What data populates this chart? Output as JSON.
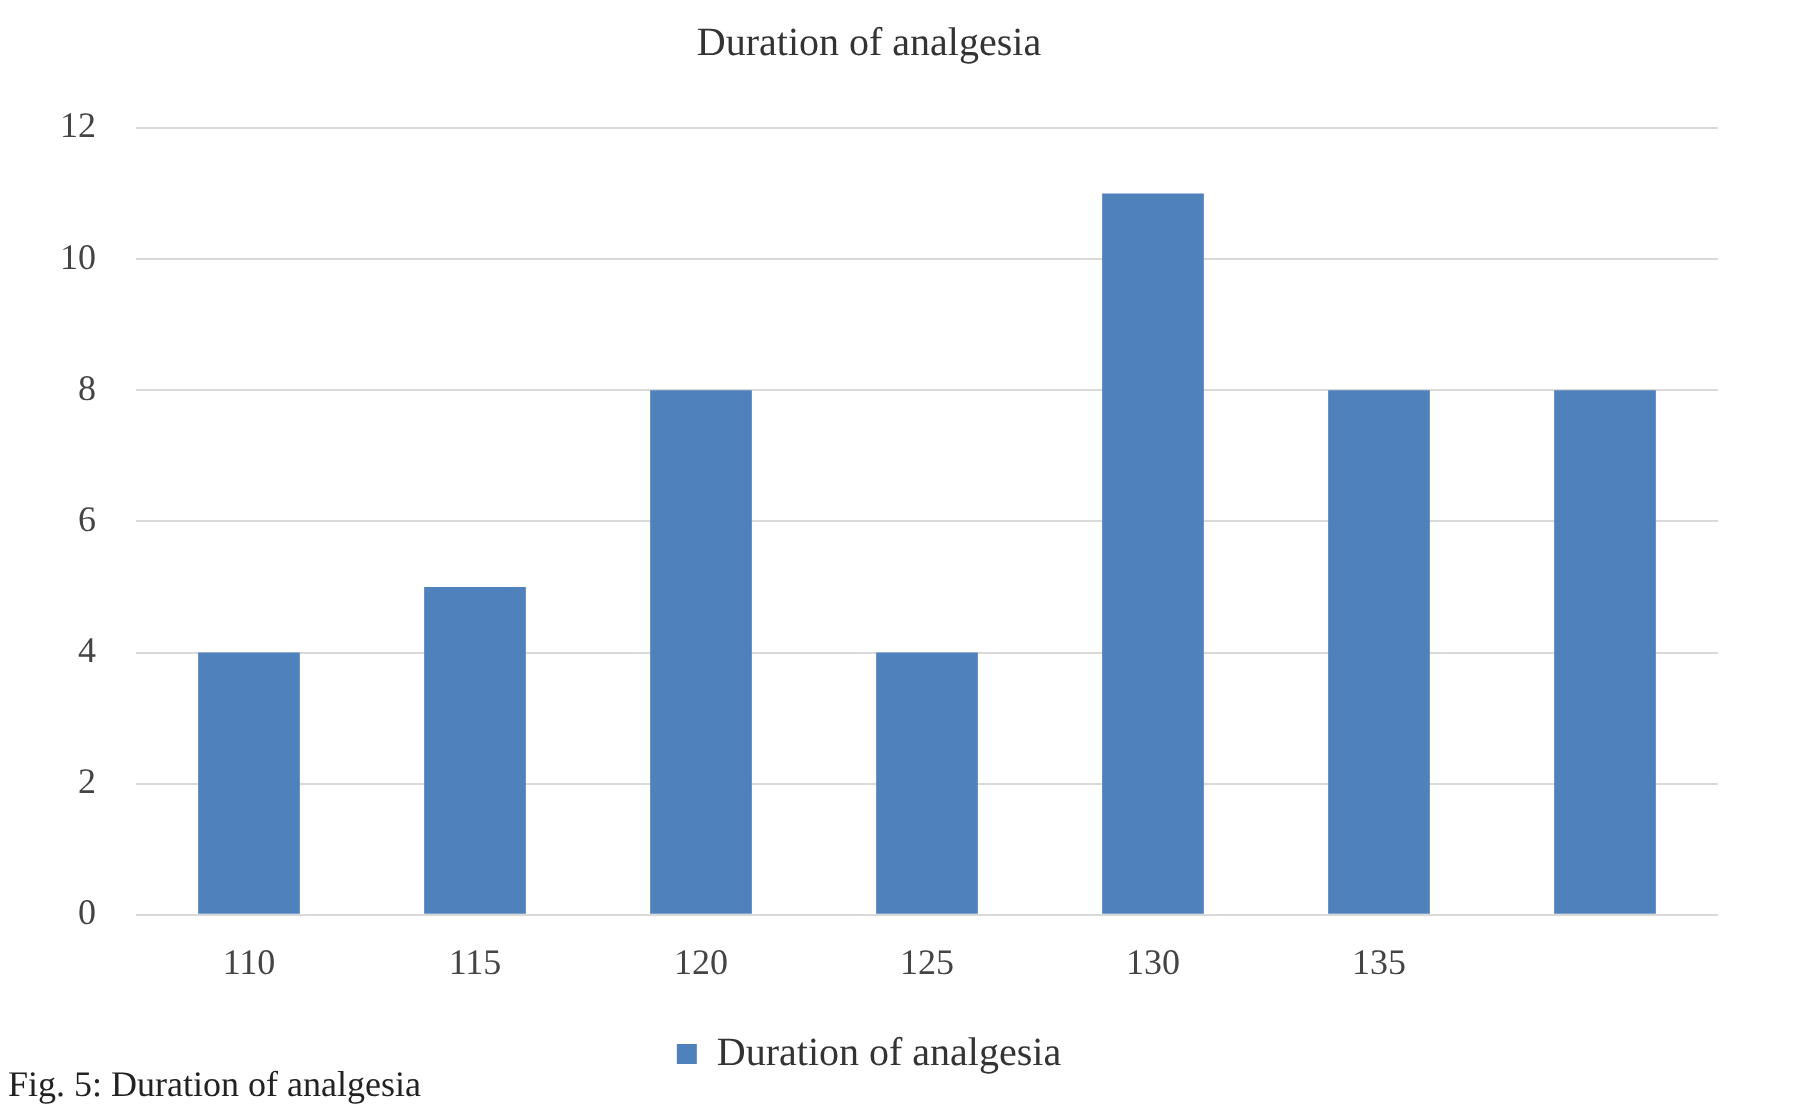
{
  "chart_data": {
    "type": "bar",
    "title": "Duration of analgesia",
    "categories": [
      "110",
      "115",
      "120",
      "125",
      "130",
      "135",
      null
    ],
    "series": [
      {
        "name": "Duration of analgesia",
        "color": "#4f81bd",
        "values": [
          4,
          5,
          8,
          4,
          11,
          8,
          8
        ]
      }
    ],
    "ylim": [
      0,
      12
    ],
    "yticks": [
      0,
      2,
      4,
      6,
      8,
      10,
      12
    ],
    "grid": "y",
    "legend": "bottom",
    "annotations": [
      "Fig. 5: Duration of analgesia"
    ]
  }
}
